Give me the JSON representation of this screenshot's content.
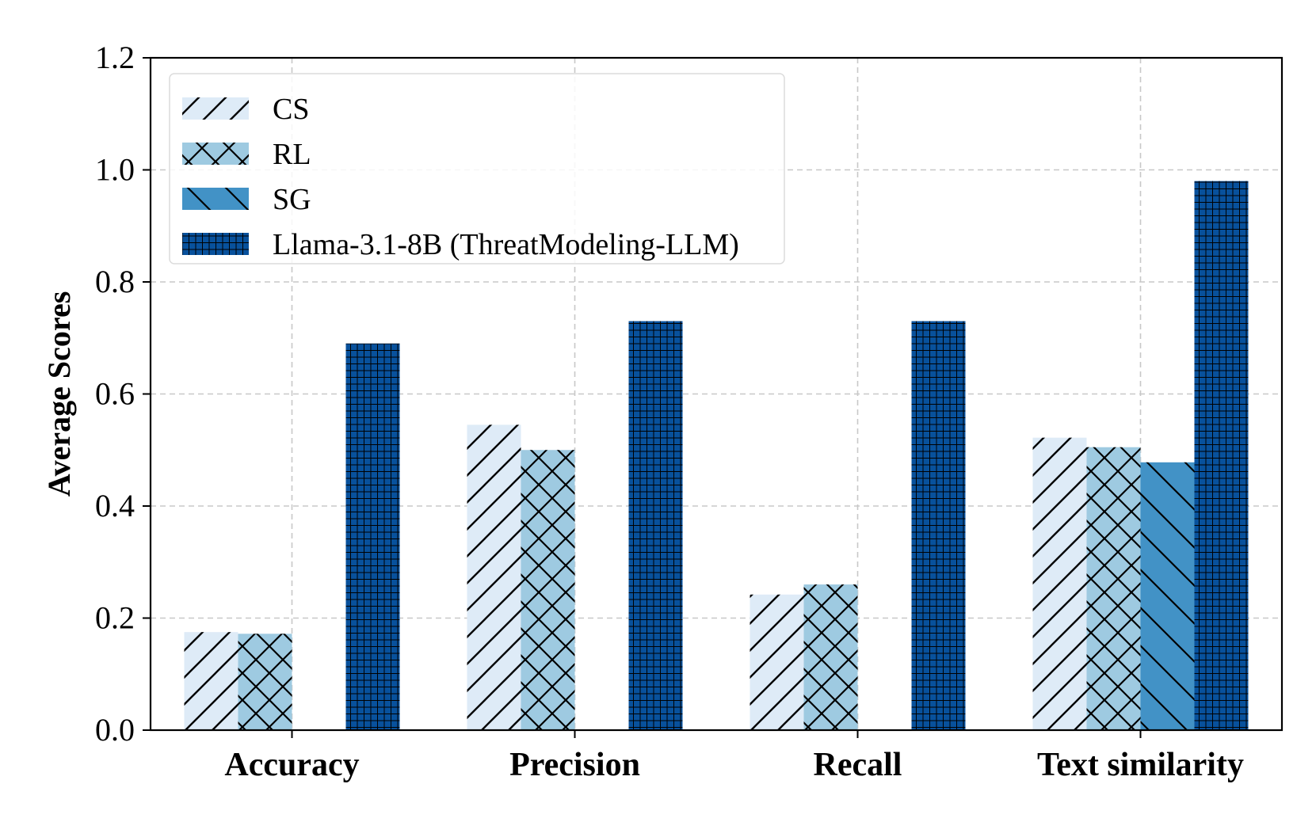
{
  "chart_data": {
    "type": "bar",
    "title": "",
    "xlabel": "",
    "ylabel": "Average Scores",
    "ylim": [
      0,
      1.2
    ],
    "yticks": [
      "0.0",
      "0.2",
      "0.4",
      "0.6",
      "0.8",
      "1.0",
      "1.2"
    ],
    "grid": true,
    "legend_position": "top-left",
    "categories": [
      "Accuracy",
      "Precision",
      "Recall",
      "Text similarity"
    ],
    "series": [
      {
        "name": "CS",
        "color": "#deebf7",
        "hatch": "diagonal",
        "values": [
          0.175,
          0.545,
          0.242,
          0.522
        ]
      },
      {
        "name": "RL",
        "color": "#9ecae1",
        "hatch": "crosshatch",
        "values": [
          0.172,
          0.5,
          0.26,
          0.505
        ]
      },
      {
        "name": "SG",
        "color": "#4292c6",
        "hatch": "backdiagonal",
        "values": [
          0,
          0,
          0,
          0.478
        ]
      },
      {
        "name": "Llama-3.1-8B (ThreatModeling-LLM)",
        "color": "#08519c",
        "hatch": "grid",
        "values": [
          0.69,
          0.73,
          0.73,
          0.98
        ]
      }
    ]
  }
}
